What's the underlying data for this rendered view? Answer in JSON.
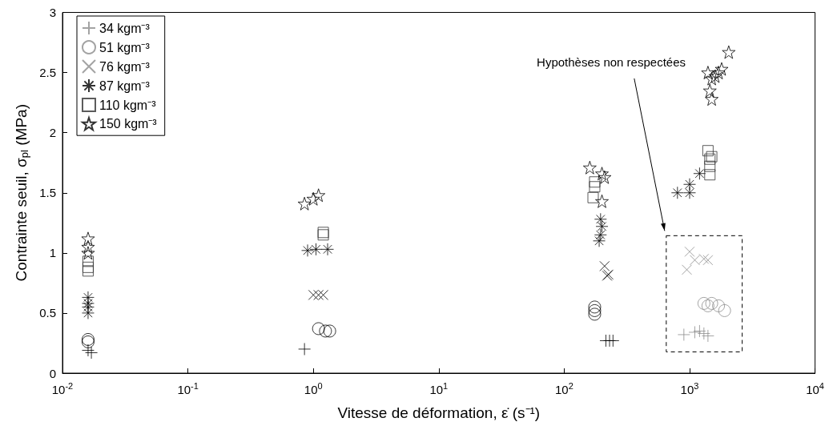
{
  "chart_data": {
    "type": "scatter",
    "xlabel": "Vitesse de déformation, ε̇ (s⁻¹)",
    "ylabel": "Contrainte seuil, σ$_{pl}$ (MPa)",
    "annotations": [
      "Hypothèses non respectées"
    ],
    "log": "x",
    "grid": false,
    "legend": "top left",
    "xlim": [
      0.01,
      10000
    ],
    "xticks": [
      {
        "value": 0.01,
        "label": "10$^{-2}$"
      },
      {
        "value": 0.1,
        "label": "10$^{-1}$"
      },
      {
        "value": 1,
        "label": "10$^{0}$"
      },
      {
        "value": 10,
        "label": "10$^{1}$"
      },
      {
        "value": 100,
        "label": "10$^{2}$"
      },
      {
        "value": 1000,
        "label": "10$^{3}$"
      },
      {
        "value": 10000,
        "label": "10$^{4}$"
      }
    ],
    "ylim": [
      0,
      3
    ],
    "yticks": [
      0,
      0.5,
      1,
      1.5,
      2,
      2.5,
      3
    ],
    "series": [
      {
        "name": "34 kgm⁻³",
        "marker": "plus",
        "color": "#8c8c8c",
        "x": [
          0.016,
          0.017,
          0.85,
          215,
          230,
          245,
          900,
          1100,
          1200,
          1300,
          1400
        ],
        "values": [
          0.19,
          0.17,
          0.2,
          0.27,
          0.27,
          0.27,
          0.32,
          0.34,
          0.35,
          0.33,
          0.31
        ],
        "colors": [
          "#000000",
          "#000000",
          "#000000",
          "#000000",
          "#000000",
          "#000000",
          "#8c8c8c",
          "#8c8c8c",
          "#8c8c8c",
          "#8c8c8c",
          "#8c8c8c"
        ]
      },
      {
        "name": "51 kgm⁻³",
        "marker": "circle",
        "color": "#8c8c8c",
        "x": [
          0.016,
          0.016,
          1.1,
          1.25,
          1.35,
          175,
          175,
          175,
          1300,
          1400,
          1500,
          1700,
          1900
        ],
        "values": [
          0.28,
          0.26,
          0.37,
          0.35,
          0.35,
          0.55,
          0.52,
          0.49,
          0.58,
          0.56,
          0.58,
          0.56,
          0.52
        ],
        "colors": [
          "#000000",
          "#000000",
          "#000000",
          "#000000",
          "#000000",
          "#000000",
          "#000000",
          "#000000",
          "#8c8c8c",
          "#8c8c8c",
          "#8c8c8c",
          "#8c8c8c",
          "#8c8c8c"
        ]
      },
      {
        "name": "76 kgm⁻³",
        "marker": "x",
        "color": "#8c8c8c",
        "x": [
          1.0,
          1.1,
          1.2,
          210,
          220,
          225,
          950,
          1000,
          1100,
          1300,
          1400
        ],
        "values": [
          0.65,
          0.65,
          0.65,
          0.89,
          0.81,
          0.82,
          0.86,
          1.01,
          0.94,
          0.95,
          0.94
        ],
        "colors": [
          "#000000",
          "#000000",
          "#000000",
          "#000000",
          "#000000",
          "#000000",
          "#8c8c8c",
          "#8c8c8c",
          "#8c8c8c",
          "#8c8c8c",
          "#8c8c8c"
        ]
      },
      {
        "name": "87 kgm⁻³",
        "marker": "cross",
        "color": "#000000",
        "x": [
          0.016,
          0.016,
          0.016,
          0.016,
          0.9,
          1.05,
          1.3,
          195,
          200,
          195,
          190,
          800,
          1000,
          1000,
          1200
        ],
        "values": [
          0.63,
          0.58,
          0.55,
          0.5,
          1.02,
          1.03,
          1.03,
          1.28,
          1.22,
          1.15,
          1.1,
          1.5,
          1.57,
          1.5,
          1.66
        ]
      },
      {
        "name": "110 kgm⁻³",
        "marker": "square",
        "color": "#333333",
        "x": [
          0.016,
          0.016,
          0.016,
          1.2,
          1.2,
          175,
          175,
          170,
          1400,
          1450,
          1450,
          1500,
          1450
        ],
        "values": [
          0.93,
          0.88,
          0.85,
          1.15,
          1.17,
          1.59,
          1.55,
          1.46,
          1.85,
          1.78,
          1.72,
          1.8,
          1.65
        ]
      },
      {
        "name": "150 kgm⁻³",
        "marker": "star",
        "color": "#000000",
        "x": [
          0.016,
          0.016,
          0.016,
          0.85,
          1.0,
          1.1,
          160,
          200,
          210,
          200,
          2050,
          1400,
          1600,
          1800,
          1700,
          1500,
          1450,
          1500
        ],
        "values": [
          1.12,
          1.05,
          1.0,
          1.41,
          1.45,
          1.48,
          1.71,
          1.66,
          1.63,
          1.43,
          2.67,
          2.5,
          2.47,
          2.53,
          2.5,
          2.45,
          2.35,
          2.28
        ]
      }
    ]
  }
}
